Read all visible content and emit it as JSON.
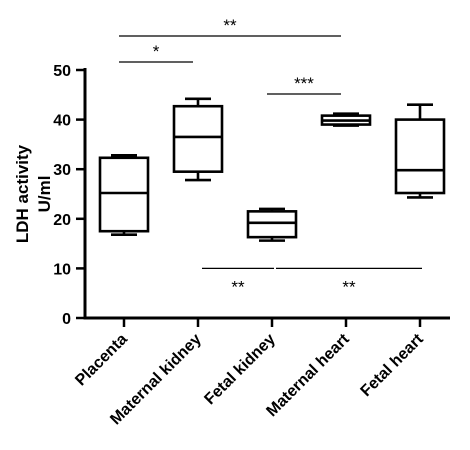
{
  "chart_data": {
    "type": "box",
    "ylabel": "LDH activity\nU/ml",
    "xlabel": "",
    "ylim": [
      0,
      50
    ],
    "yticks": [
      0,
      10,
      20,
      30,
      40,
      50
    ],
    "grid": false,
    "categories": [
      "Placenta",
      "Maternal kidney",
      "Fetal kidney",
      "Maternal heart",
      "Fetal heart"
    ],
    "boxes": [
      {
        "min": 16.8,
        "q1": 17.5,
        "median": 25.2,
        "q3": 32.3,
        "max": 32.8
      },
      {
        "min": 27.8,
        "q1": 29.5,
        "median": 36.5,
        "q3": 42.7,
        "max": 44.2
      },
      {
        "min": 15.6,
        "q1": 16.3,
        "median": 19.2,
        "q3": 21.5,
        "max": 22.0
      },
      {
        "min": 38.8,
        "q1": 39.0,
        "median": 39.8,
        "q3": 40.8,
        "max": 41.2
      },
      {
        "min": 24.3,
        "q1": 25.2,
        "median": 29.8,
        "q3": 40.0,
        "max": 43.0
      }
    ],
    "significance": [
      {
        "label": "**",
        "from": "Placenta",
        "to": "Maternal heart",
        "position": "above"
      },
      {
        "label": "*",
        "from": "Placenta",
        "to": "Maternal kidney",
        "position": "above"
      },
      {
        "label": "***",
        "from": "Fetal kidney",
        "to": "Maternal heart",
        "position": "above"
      },
      {
        "label": "**",
        "from": "Maternal kidney",
        "to": "Fetal kidney",
        "position": "below"
      },
      {
        "label": "**",
        "from": "Fetal kidney",
        "to": "Fetal heart",
        "position": "below"
      }
    ]
  }
}
